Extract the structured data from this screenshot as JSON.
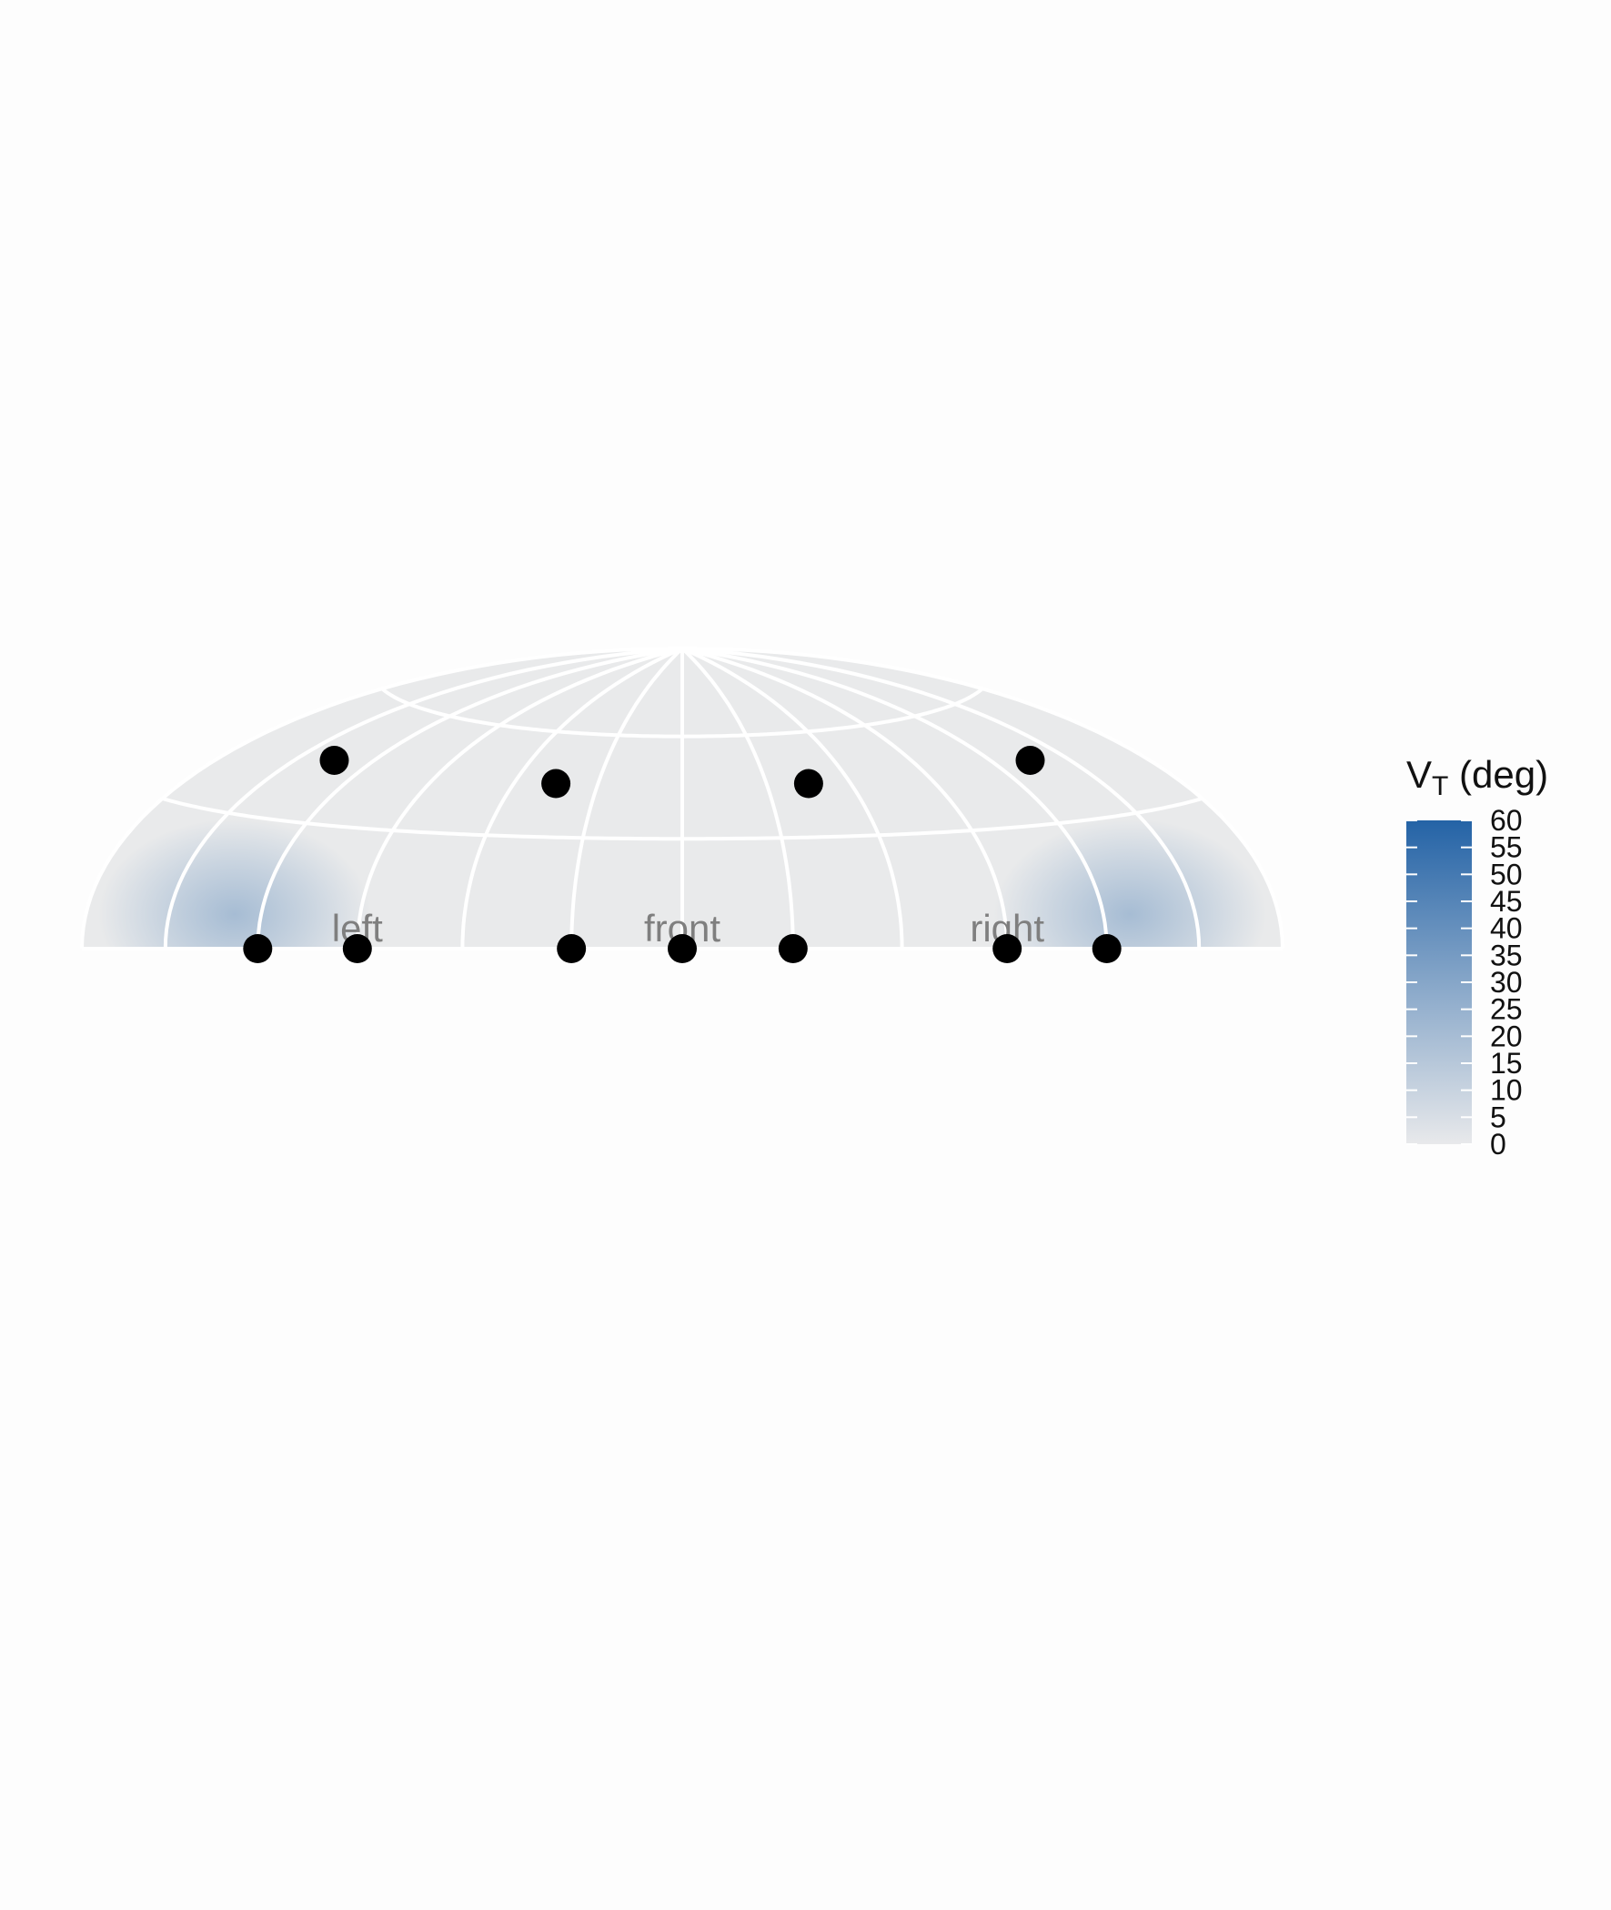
{
  "chart_data": {
    "type": "heatmap",
    "projection": "hammer-aitoff upper hemisphere",
    "grid": true,
    "longitude_gridlines_deg": [
      -180,
      -150,
      -120,
      -90,
      -60,
      -30,
      0,
      30,
      60,
      90,
      120,
      150,
      180
    ],
    "latitude_gridlines_deg": [
      0,
      30,
      60
    ],
    "direction_labels": [
      {
        "text": "left",
        "azimuth": -90
      },
      {
        "text": "front",
        "azimuth": 0
      },
      {
        "text": "right",
        "azimuth": 90
      }
    ],
    "points": [
      {
        "azimuth": -120,
        "elevation": 0
      },
      {
        "azimuth": -90,
        "elevation": 0
      },
      {
        "azimuth": -30,
        "elevation": 0
      },
      {
        "azimuth": 0,
        "elevation": 0
      },
      {
        "azimuth": 30,
        "elevation": 0
      },
      {
        "azimuth": 90,
        "elevation": 0
      },
      {
        "azimuth": 120,
        "elevation": 0
      },
      {
        "azimuth": -135,
        "elevation": 45
      },
      {
        "azimuth": -45,
        "elevation": 45
      },
      {
        "azimuth": 45,
        "elevation": 45
      },
      {
        "azimuth": 135,
        "elevation": 45
      }
    ],
    "hotspots": [
      {
        "azimuth": -130,
        "elevation": 12,
        "value": 20
      },
      {
        "azimuth": 130,
        "elevation": 12,
        "value": 20
      }
    ],
    "colorbar": {
      "title": "V",
      "title_subscript": "T",
      "title_suffix": " (deg)",
      "min": 0,
      "max": 60,
      "ticks": [
        "60",
        "55",
        "50",
        "45",
        "40",
        "35",
        "30",
        "25",
        "20",
        "15",
        "10",
        "5",
        "0"
      ],
      "colors": {
        "low": "#e8e9eb",
        "high": "#2463a6"
      }
    }
  },
  "colors": {
    "background": "#fdfdfd",
    "grid": "#ffffff",
    "points": "#000000",
    "direction_label": "#7f7f7f"
  }
}
